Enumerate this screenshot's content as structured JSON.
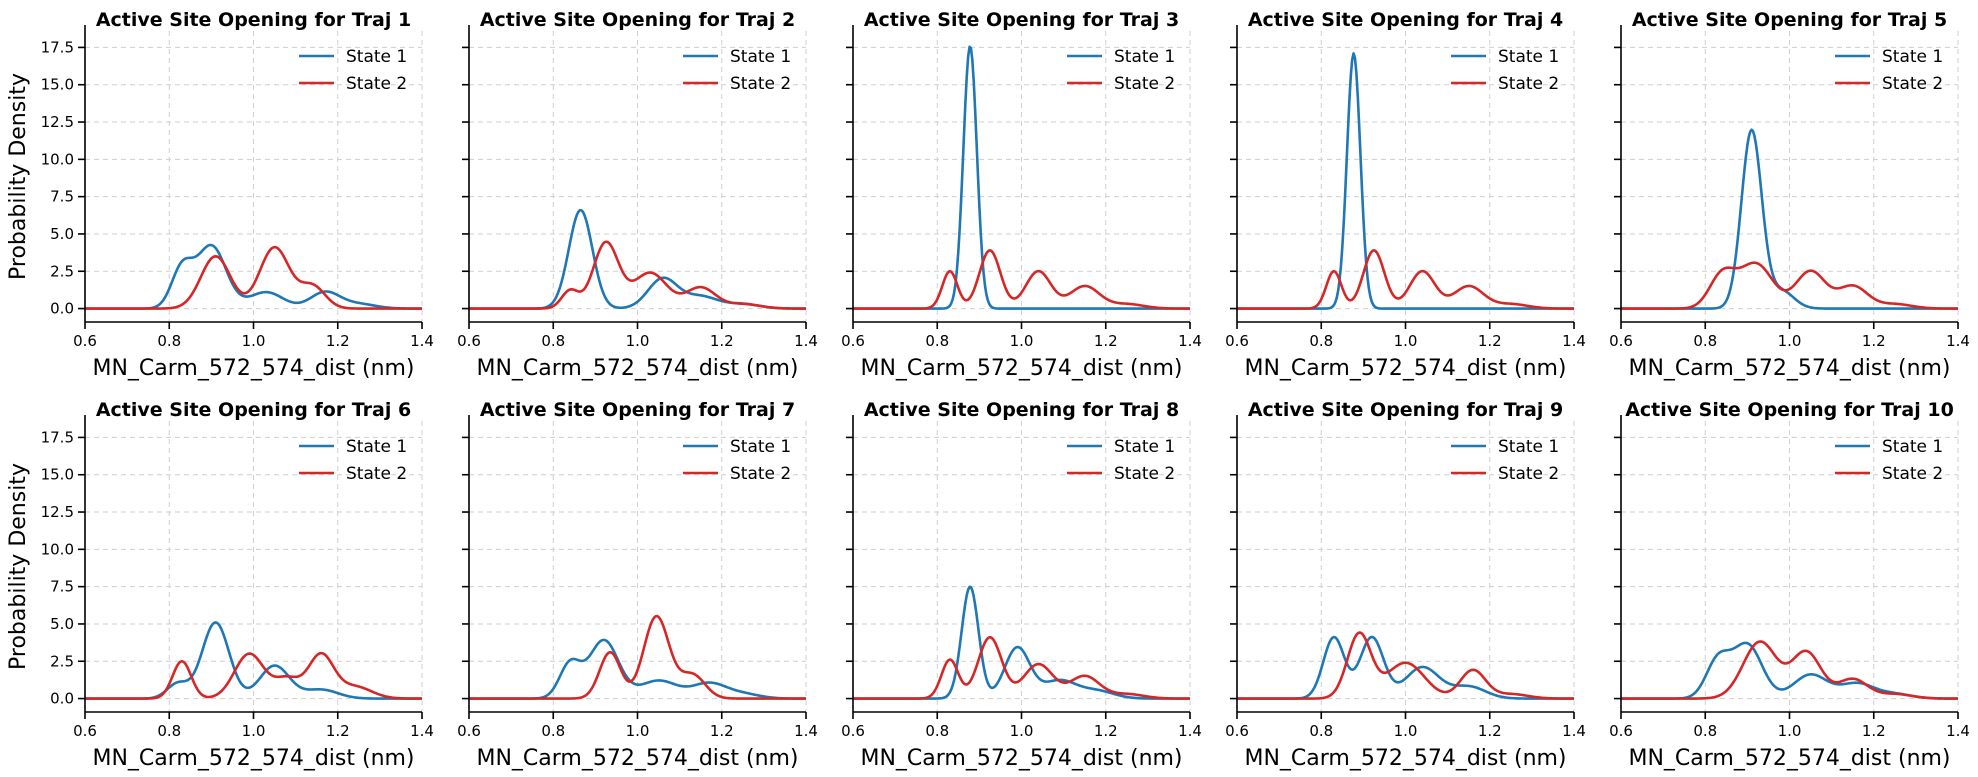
{
  "chart_data": {
    "type": "line",
    "layout": "grid 2 rows x 5 columns, shared axes",
    "ylabel": "Probability Density",
    "xlabel": "MN_Carm_572_574_dist (nm)",
    "xlim": [
      0.6,
      1.4
    ],
    "ylim": [
      -0.9,
      18.6
    ],
    "x_ticks": [
      0.6,
      0.8,
      1.0,
      1.2,
      1.4
    ],
    "x_tick_labels": [
      "0.6",
      "0.8",
      "1.0",
      "1.2",
      "1.4"
    ],
    "y_ticks": [
      0,
      2.5,
      5,
      7.5,
      10,
      12.5,
      15,
      17.5
    ],
    "y_tick_labels": [
      "0.0",
      "2.5",
      "5.0",
      "7.5",
      "10.0",
      "12.5",
      "15.0",
      "17.5"
    ],
    "grid": true,
    "legend_position": "top-right",
    "series_colors": {
      "State 1": "#1f77b4",
      "State 2": "#d62728"
    },
    "panels": [
      {
        "title": "Active Site Opening for Traj 1",
        "series": [
          {
            "name": "State 1",
            "peaks": [
              [
                0.83,
                2.6,
                0.025
              ],
              [
                0.9,
                4.2,
                0.035
              ],
              [
                1.03,
                1.1,
                0.04
              ],
              [
                1.17,
                1.1,
                0.035
              ],
              [
                1.25,
                0.3,
                0.04
              ]
            ]
          },
          {
            "name": "State 2",
            "peaks": [
              [
                0.91,
                3.5,
                0.035
              ],
              [
                1.05,
                4.1,
                0.035
              ],
              [
                1.14,
                1.5,
                0.03
              ]
            ]
          }
        ]
      },
      {
        "title": "Active Site Opening for Traj 2",
        "series": [
          {
            "name": "State 1",
            "peaks": [
              [
                0.865,
                6.6,
                0.028
              ],
              [
                1.06,
                2.0,
                0.035
              ],
              [
                1.15,
                0.8,
                0.04
              ],
              [
                1.25,
                0.3,
                0.04
              ]
            ]
          },
          {
            "name": "State 2",
            "peaks": [
              [
                0.84,
                1.2,
                0.02
              ],
              [
                0.925,
                4.4,
                0.03
              ],
              [
                1.03,
                2.4,
                0.04
              ],
              [
                1.15,
                1.4,
                0.035
              ],
              [
                1.25,
                0.3,
                0.04
              ]
            ]
          }
        ]
      },
      {
        "title": "Active Site Opening for Traj 3",
        "series": [
          {
            "name": "State 1",
            "peaks": [
              [
                0.878,
                17.6,
                0.016
              ]
            ]
          },
          {
            "name": "State 2",
            "peaks": [
              [
                0.83,
                2.5,
                0.018
              ],
              [
                0.925,
                3.9,
                0.025
              ],
              [
                1.04,
                2.5,
                0.03
              ],
              [
                1.15,
                1.5,
                0.035
              ],
              [
                1.25,
                0.3,
                0.04
              ]
            ]
          }
        ]
      },
      {
        "title": "Active Site Opening for Traj 4",
        "series": [
          {
            "name": "State 1",
            "peaks": [
              [
                0.877,
                17.1,
                0.016
              ]
            ]
          },
          {
            "name": "State 2",
            "peaks": [
              [
                0.83,
                2.5,
                0.018
              ],
              [
                0.925,
                3.9,
                0.025
              ],
              [
                1.04,
                2.5,
                0.03
              ],
              [
                1.15,
                1.5,
                0.035
              ],
              [
                1.25,
                0.3,
                0.04
              ]
            ]
          }
        ]
      },
      {
        "title": "Active Site Opening for Traj 5",
        "series": [
          {
            "name": "State 1",
            "peaks": [
              [
                0.91,
                11.9,
                0.024
              ],
              [
                0.98,
                1.2,
                0.03
              ]
            ]
          },
          {
            "name": "State 2",
            "peaks": [
              [
                0.84,
                2.2,
                0.03
              ],
              [
                0.92,
                3.0,
                0.04
              ],
              [
                1.05,
                2.5,
                0.035
              ],
              [
                1.15,
                1.5,
                0.035
              ],
              [
                1.25,
                0.3,
                0.04
              ]
            ]
          }
        ]
      },
      {
        "title": "Active Site Opening for Traj 6",
        "series": [
          {
            "name": "State 1",
            "peaks": [
              [
                0.82,
                1.0,
                0.025
              ],
              [
                0.91,
                5.1,
                0.032
              ],
              [
                1.05,
                2.2,
                0.035
              ],
              [
                1.16,
                0.6,
                0.04
              ]
            ]
          },
          {
            "name": "State 2",
            "peaks": [
              [
                0.83,
                2.5,
                0.022
              ],
              [
                0.99,
                3.0,
                0.035
              ],
              [
                1.08,
                1.3,
                0.03
              ],
              [
                1.16,
                2.9,
                0.03
              ],
              [
                1.24,
                0.8,
                0.04
              ]
            ]
          }
        ]
      },
      {
        "title": "Active Site Opening for Traj 7",
        "series": [
          {
            "name": "State 1",
            "peaks": [
              [
                0.84,
                2.3,
                0.025
              ],
              [
                0.92,
                3.9,
                0.035
              ],
              [
                1.05,
                1.2,
                0.045
              ],
              [
                1.17,
                1.0,
                0.04
              ],
              [
                1.25,
                0.3,
                0.04
              ]
            ]
          },
          {
            "name": "State 2",
            "peaks": [
              [
                0.935,
                3.1,
                0.025
              ],
              [
                1.045,
                5.5,
                0.03
              ],
              [
                1.13,
                1.6,
                0.03
              ]
            ]
          }
        ]
      },
      {
        "title": "Active Site Opening for Traj 8",
        "series": [
          {
            "name": "State 1",
            "peaks": [
              [
                0.878,
                7.5,
                0.02
              ],
              [
                0.99,
                3.4,
                0.03
              ],
              [
                1.09,
                1.2,
                0.04
              ],
              [
                1.18,
                0.5,
                0.04
              ]
            ]
          },
          {
            "name": "State 2",
            "peaks": [
              [
                0.83,
                2.6,
                0.02
              ],
              [
                0.925,
                4.1,
                0.028
              ],
              [
                1.04,
                2.3,
                0.035
              ],
              [
                1.15,
                1.5,
                0.035
              ],
              [
                1.25,
                0.3,
                0.04
              ]
            ]
          }
        ]
      },
      {
        "title": "Active Site Opening for Traj 9",
        "series": [
          {
            "name": "State 1",
            "peaks": [
              [
                0.83,
                4.1,
                0.025
              ],
              [
                0.92,
                4.1,
                0.028
              ],
              [
                1.04,
                2.1,
                0.04
              ],
              [
                1.15,
                0.8,
                0.04
              ]
            ]
          },
          {
            "name": "State 2",
            "peaks": [
              [
                0.89,
                4.3,
                0.028
              ],
              [
                1.0,
                2.4,
                0.045
              ],
              [
                1.16,
                1.9,
                0.03
              ],
              [
                1.25,
                0.3,
                0.04
              ]
            ]
          }
        ]
      },
      {
        "title": "Active Site Opening for Traj 10",
        "series": [
          {
            "name": "State 1",
            "peaks": [
              [
                0.83,
                2.5,
                0.028
              ],
              [
                0.9,
                3.6,
                0.035
              ],
              [
                1.05,
                1.6,
                0.04
              ],
              [
                1.16,
                1.0,
                0.04
              ],
              [
                1.25,
                0.3,
                0.04
              ]
            ]
          },
          {
            "name": "State 2",
            "peaks": [
              [
                0.93,
                3.8,
                0.04
              ],
              [
                1.04,
                3.1,
                0.035
              ],
              [
                1.15,
                1.3,
                0.035
              ],
              [
                1.25,
                0.3,
                0.04
              ]
            ]
          }
        ]
      }
    ]
  }
}
